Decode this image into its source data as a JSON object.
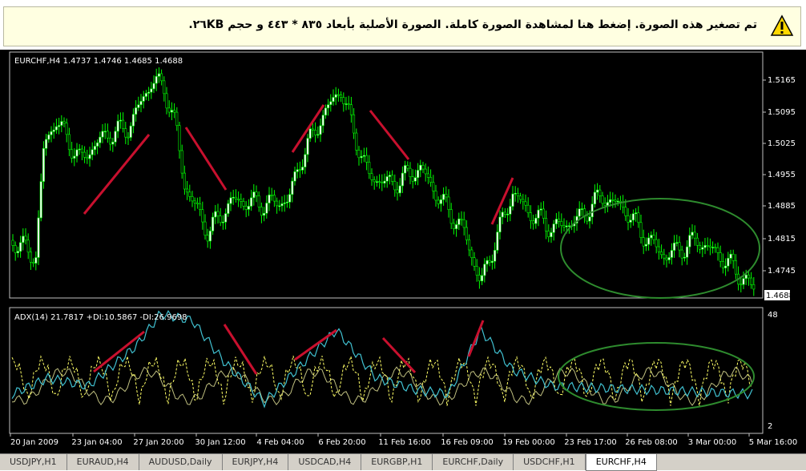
{
  "banner": {
    "text": "تم تصغير هذه الصورة. إضغط هنا لمشاهدة الصورة كاملة. الصورة الأصلية بأبعاد ٨٣٥ * ٤٤٣ و حجم ٢٦KB."
  },
  "main_panel": {
    "label": "EURCHF,H4  1.4737 1.4746 1.4685 1.4688",
    "y_ticks": [
      "1.5165",
      "1.5095",
      "1.5025",
      "1.4955",
      "1.4885",
      "1.4815",
      "1.4745"
    ],
    "current_price": "1.4688"
  },
  "adx_panel": {
    "label": "ADX(14) 21.7817 +DI:10.5867 -DI:26.9698",
    "y_ticks": [
      "48",
      "2"
    ]
  },
  "x_ticks": [
    "20 Jan 2009",
    "23 Jan 04:00",
    "27 Jan 20:00",
    "30 Jan 12:00",
    "4 Feb 04:00",
    "6 Feb 20:00",
    "11 Feb 16:00",
    "16 Feb 09:00",
    "19 Feb 00:00",
    "23 Feb 17:00",
    "26 Feb 08:00",
    "3 Mar 00:00",
    "5 Mar 16:00"
  ],
  "tabs": [
    "USDJPY,H1",
    "EURAUD,H4",
    "AUDUSD,Daily",
    "EURJPY,H4",
    "USDCAD,H4",
    "EURGBP,H1",
    "EURCHF,Daily",
    "USDCHF,H1",
    "EURCHF,H4"
  ]
}
